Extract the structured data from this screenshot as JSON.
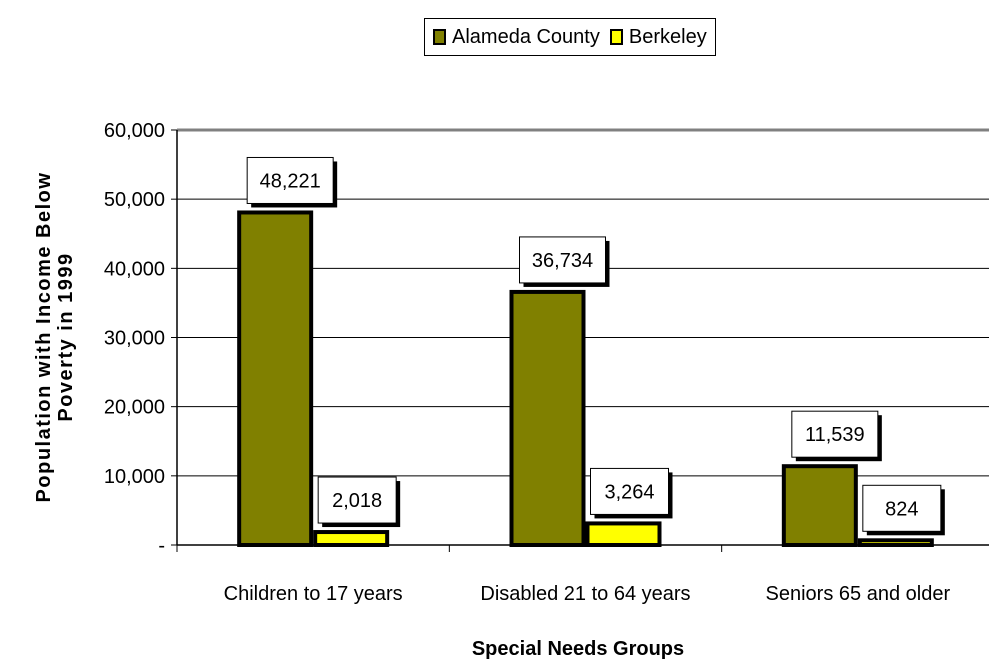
{
  "chart_data": {
    "type": "bar",
    "categories": [
      "Children to 17 years",
      "Disabled 21 to 64 years",
      "Seniors 65 and older"
    ],
    "series": [
      {
        "name": "Alameda County",
        "values": [
          48221,
          36734,
          11539
        ],
        "labels": [
          "48,221",
          "36,734",
          "11,539"
        ],
        "color": "#808000"
      },
      {
        "name": "Berkeley",
        "values": [
          2018,
          3264,
          824
        ],
        "labels": [
          "2,018",
          "3,264",
          "824"
        ],
        "color": "#ffff00"
      }
    ],
    "xlabel": "Special Needs Groups",
    "ylabel_lines": [
      "Population with Income Below",
      "Poverty in 1999"
    ],
    "ylim": [
      0,
      60000
    ],
    "yticks": [
      0,
      10000,
      20000,
      30000,
      40000,
      50000,
      60000
    ],
    "ytick_labels": [
      "-",
      "10,000",
      "20,000",
      "30,000",
      "40,000",
      "50,000",
      "60,000"
    ],
    "grid": true,
    "legend_position": "top-center"
  }
}
